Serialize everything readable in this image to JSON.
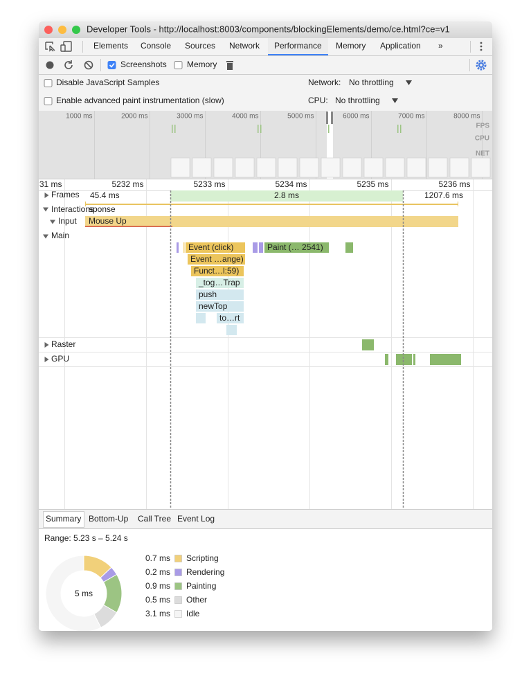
{
  "window": {
    "title": "Developer Tools - http://localhost:8003/components/blockingElements/demo/ce.html?ce=v1"
  },
  "tabs": [
    {
      "label": "Elements"
    },
    {
      "label": "Console"
    },
    {
      "label": "Sources"
    },
    {
      "label": "Network"
    },
    {
      "label": "Performance",
      "active": true
    },
    {
      "label": "Memory"
    },
    {
      "label": "Application"
    }
  ],
  "toolbar": {
    "screenshots": {
      "label": "Screenshots",
      "checked": true
    },
    "memory": {
      "label": "Memory",
      "checked": false
    }
  },
  "options": {
    "disable_js_samples": {
      "label": "Disable JavaScript Samples",
      "checked": false
    },
    "paint_instrumentation": {
      "label": "Enable advanced paint instrumentation (slow)",
      "checked": false
    },
    "network": {
      "label": "Network:",
      "value": "No throttling"
    },
    "cpu": {
      "label": "CPU:",
      "value": "No throttling"
    }
  },
  "overview": {
    "ticks": [
      "1000 ms",
      "2000 ms",
      "3000 ms",
      "4000 ms",
      "5000 ms",
      "6000 ms",
      "7000 ms",
      "8000 ms"
    ],
    "lanes": [
      "FPS",
      "CPU",
      "NET"
    ]
  },
  "timeline": {
    "ticks": [
      "31 ms",
      "5232 ms",
      "5233 ms",
      "5234 ms",
      "5235 ms",
      "5236 ms"
    ]
  },
  "tracks": {
    "frames": {
      "label": "Frames",
      "durations": [
        "45.4 ms",
        "2.8 ms",
        "1207.6 ms"
      ]
    },
    "interactions": {
      "label": "Interactions",
      "overlay": "sponse"
    },
    "input": {
      "label": "Input",
      "event": "Mouse Up"
    },
    "main": {
      "label": "Main",
      "events": [
        "Event (click)",
        "Paint (… 2541)",
        "Event …ange)",
        "Funct…l:59)",
        "_tog…Trap",
        "push",
        "newTop",
        "to…rt"
      ]
    },
    "raster": {
      "label": "Raster"
    },
    "gpu": {
      "label": "GPU"
    }
  },
  "bottom_tabs": [
    {
      "label": "Summary",
      "active": true
    },
    {
      "label": "Bottom-Up"
    },
    {
      "label": "Call Tree"
    },
    {
      "label": "Event Log"
    }
  ],
  "summary": {
    "range": "Range: 5.23 s – 5.24 s",
    "total": "5 ms",
    "items": [
      {
        "value": 0.7,
        "label": "0.7 ms",
        "name": "Scripting",
        "color": "#f1d07a"
      },
      {
        "value": 0.2,
        "label": "0.2 ms",
        "name": "Rendering",
        "color": "#a99be6"
      },
      {
        "value": 0.9,
        "label": "0.9 ms",
        "name": "Painting",
        "color": "#9cc483"
      },
      {
        "value": 0.5,
        "label": "0.5 ms",
        "name": "Other",
        "color": "#dcdcdc"
      },
      {
        "value": 3.1,
        "label": "3.1 ms",
        "name": "Idle",
        "color": "#f5f5f5"
      }
    ]
  }
}
